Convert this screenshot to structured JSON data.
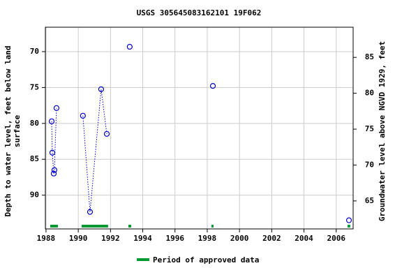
{
  "chart_data": {
    "type": "scatter",
    "title": "USGS 305645083162101 19F062",
    "ylabel": [
      "Depth to water level, feet below land",
      "surface"
    ],
    "y2label": "Groundwater level above NGVD 1929, feet",
    "x": [
      1988.35,
      1988.39,
      1988.48,
      1988.52,
      1988.65,
      null,
      1990.29,
      1990.73,
      1991.42,
      1991.77,
      null,
      1993.19,
      null,
      1998.35,
      null,
      2006.79
    ],
    "series": [
      {
        "color": "#0000cc",
        "values": [
          79.71,
          84.08,
          86.99,
          86.5,
          77.86,
          null,
          78.93,
          92.33,
          75.24,
          81.46,
          null,
          69.32,
          null,
          74.78,
          null,
          93.5
        ]
      }
    ],
    "xlim": [
      1987.96,
      2007.05
    ],
    "xticks": [
      1988,
      1990,
      1992,
      1994,
      1996,
      1998,
      2000,
      2002,
      2004,
      2006
    ],
    "ylim": [
      66.6,
      94.7
    ],
    "yticks": [
      70,
      75,
      80,
      85,
      90
    ],
    "y2lim": [
      89.2,
      61.1
    ],
    "y2ticks": [
      65,
      70,
      75,
      80,
      85
    ],
    "grid": true,
    "approved_periods": [
      [
        1988.26,
        1988.74
      ],
      [
        1990.21,
        1991.85
      ],
      [
        1993.11,
        1993.28
      ],
      [
        1998.26,
        1998.39
      ],
      [
        2006.7,
        2006.87
      ]
    ],
    "approved_color": "#009933",
    "legend": "Period of approved data"
  }
}
